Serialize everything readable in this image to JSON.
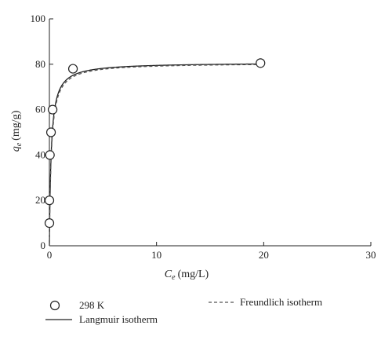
{
  "chart_data": {
    "type": "scatter",
    "title": "",
    "xlabel": {
      "symbol": "C",
      "subscript": "e",
      "unit": "(mg/L)"
    },
    "ylabel": {
      "symbol": "q",
      "subscript": "e",
      "unit": "(mg/g)"
    },
    "xlim": [
      0,
      30
    ],
    "ylim": [
      0,
      100
    ],
    "xticks": [
      "0",
      "10",
      "20",
      "30"
    ],
    "yticks": [
      "0",
      "20",
      "40",
      "60",
      "80",
      "100"
    ],
    "grid": false,
    "legend_position": "bottom",
    "series": [
      {
        "name": "298 K",
        "kind": "markers",
        "marker": "open-circle",
        "points": [
          {
            "x": 0.0,
            "y": 10
          },
          {
            "x": 0.0,
            "y": 20
          },
          {
            "x": 0.05,
            "y": 40
          },
          {
            "x": 0.15,
            "y": 50
          },
          {
            "x": 0.3,
            "y": 60
          },
          {
            "x": 2.2,
            "y": 78
          },
          {
            "x": 19.7,
            "y": 80.5
          }
        ]
      },
      {
        "name": "Langmuir isotherm",
        "kind": "line",
        "style": "solid",
        "model": {
          "qmax": 80.8,
          "KL": 6.0
        },
        "x_range": [
          0,
          19.8
        ]
      },
      {
        "name": "Freundlich isotherm",
        "kind": "line",
        "style": "dashed",
        "model": {
          "qmax": 80.6,
          "KL": 5.5
        },
        "x_range": [
          0,
          19.8
        ]
      }
    ],
    "colors": {
      "line": "#555555",
      "marker": "#222222",
      "axis": "#222222"
    }
  }
}
